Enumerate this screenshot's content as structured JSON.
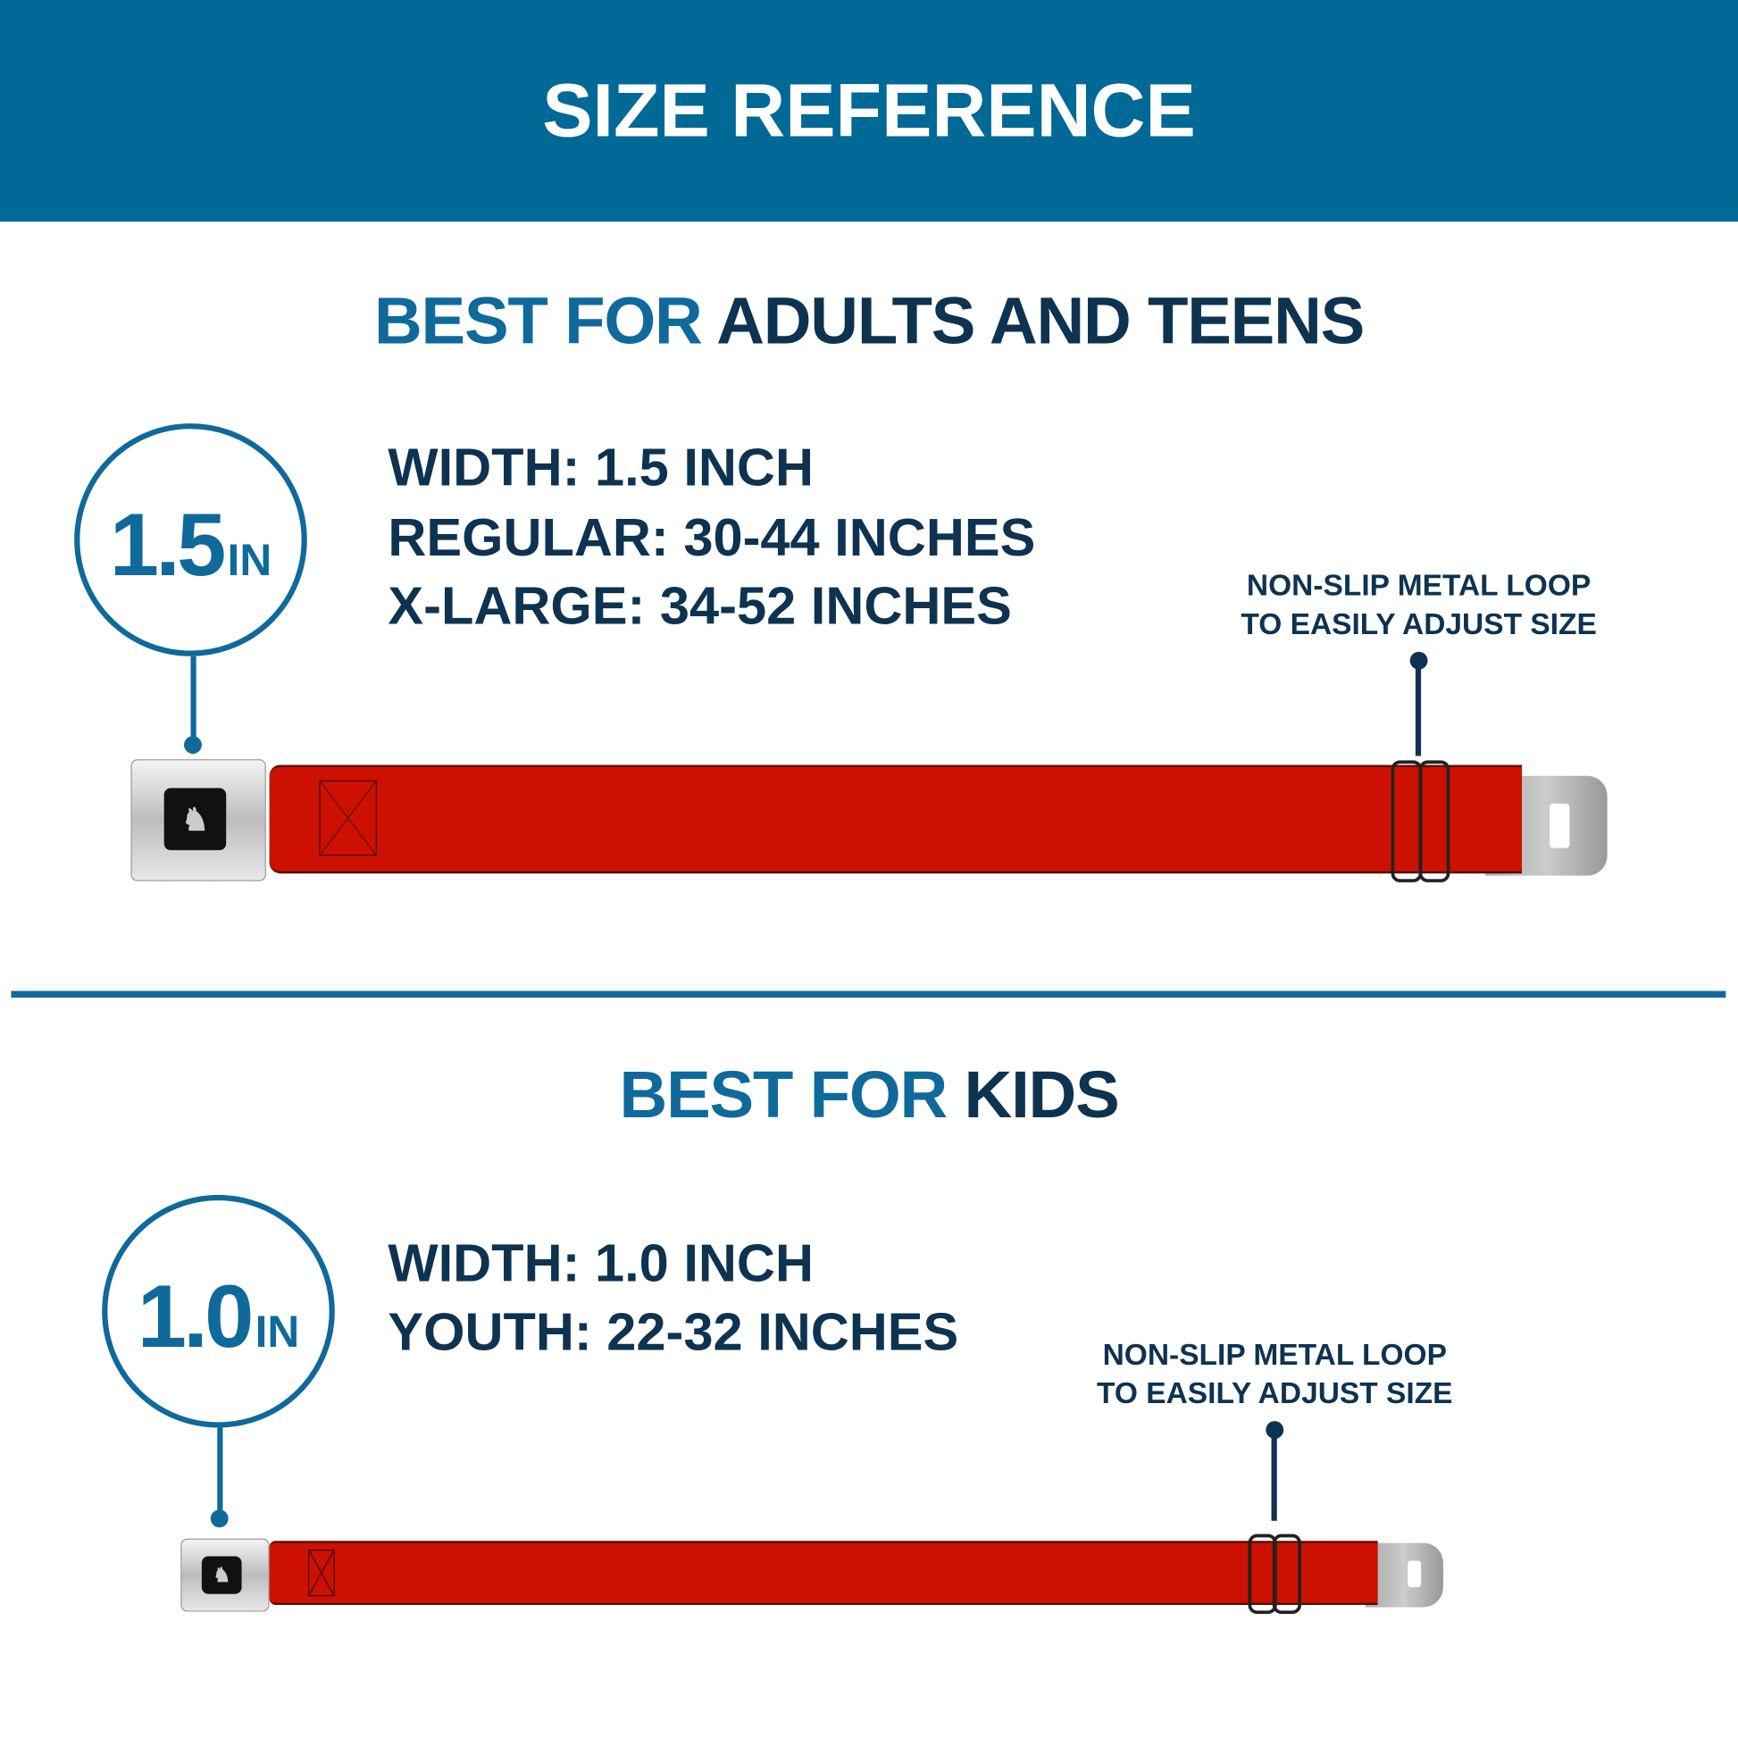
{
  "header": {
    "title": "SIZE REFERENCE"
  },
  "colors": {
    "header_bg": "#006996",
    "accent": "#0f6a9b",
    "dark_text": "#0d3350",
    "strap": "#cc1100"
  },
  "adult": {
    "heading_highlight": "BEST FOR",
    "heading_rest": "ADULTS AND TEENS",
    "badge_value": "1.5",
    "badge_unit": "IN",
    "specs": [
      "WIDTH: 1.5 INCH",
      "REGULAR: 30-44 INCHES",
      "X-LARGE: 34-52 INCHES"
    ],
    "note": [
      "NON-SLIP METAL LOOP",
      "TO EASILY ADJUST SIZE"
    ]
  },
  "kids": {
    "heading_highlight": "BEST FOR",
    "heading_rest": "KIDS",
    "badge_value": "1.0",
    "badge_unit": "IN",
    "specs": [
      "WIDTH: 1.0 INCH",
      "YOUTH: 22-32 INCHES"
    ],
    "note": [
      "NON-SLIP METAL LOOP",
      "TO EASILY ADJUST SIZE"
    ]
  },
  "icons": {
    "emblem": "running-horse-emblem"
  }
}
